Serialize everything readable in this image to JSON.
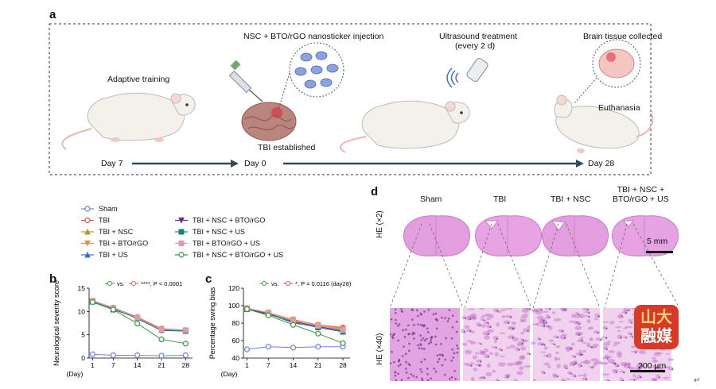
{
  "panel_a": {
    "letter": "a",
    "labels": {
      "adaptive": "Adaptive training",
      "injection": "NSC + BTO/rGO nanosticker injection",
      "ultrasound_1": "Ultrasound treatment",
      "ultrasound_2": "(every 2 d)",
      "brain_tissue": "Brain tissue collected",
      "tbi": "TBI established",
      "euthanasia": "Euthanasia"
    },
    "timeline": [
      "Day 7",
      "Day 0",
      "Day 28"
    ]
  },
  "legend": {
    "items": [
      {
        "label": "Sham",
        "color": "#6f7fe0"
      },
      {
        "label": "TBI",
        "color": "#d9534f"
      },
      {
        "label": "TBI + NSC",
        "color": "#b8962e"
      },
      {
        "label": "TBI + BTO/rGO",
        "color": "#f08a4b"
      },
      {
        "label": "TBI + US",
        "color": "#3f6fbf"
      },
      {
        "label": "TBI + NSC + BTO/rGO",
        "color": "#6a2a8a"
      },
      {
        "label": "TBI + NSC + US",
        "color": "#17837a"
      },
      {
        "label": "TBI + BTO/rGO + US",
        "color": "#e39aa8"
      },
      {
        "label": "TBI + NSC + BTO/rGO + US",
        "color": "#3a9a3a"
      }
    ]
  },
  "chart_data": [
    {
      "id": "b",
      "letter": "b",
      "type": "line",
      "ylabel": "Neurological severity score",
      "x_unit": "(Day)",
      "x": [
        1,
        7,
        14,
        21,
        28
      ],
      "ylim": [
        0,
        15
      ],
      "yticks": [
        0,
        5,
        10,
        15
      ],
      "annotation_vs": "vs.",
      "annotation_stat": "****, P < 0.0001",
      "series": [
        {
          "name": "Sham",
          "color": "#6f7fe0",
          "values": [
            0.8,
            0.6,
            0.6,
            0.5,
            0.6
          ]
        },
        {
          "name": "TBI",
          "color": "#d9534f",
          "values": [
            12.3,
            10.8,
            8.8,
            6.3,
            6.0
          ]
        },
        {
          "name": "TBI + NSC",
          "color": "#b8962e",
          "values": [
            12.2,
            10.5,
            8.7,
            6.2,
            5.9
          ]
        },
        {
          "name": "TBI + BTO/rGO",
          "color": "#f08a4b",
          "values": [
            12.2,
            10.6,
            8.6,
            6.2,
            5.9
          ]
        },
        {
          "name": "TBI + US",
          "color": "#3f6fbf",
          "values": [
            12.1,
            10.4,
            8.7,
            6.1,
            6.0
          ]
        },
        {
          "name": "TBI + NSC + BTO/rGO",
          "color": "#6a2a8a",
          "values": [
            12.2,
            10.6,
            8.5,
            5.9,
            5.8
          ]
        },
        {
          "name": "TBI + NSC + US",
          "color": "#17837a",
          "values": [
            12.1,
            10.5,
            8.6,
            6.0,
            5.8
          ]
        },
        {
          "name": "TBI + BTO/rGO + US",
          "color": "#e39aa8",
          "values": [
            12.3,
            10.7,
            8.7,
            6.1,
            6.0
          ]
        },
        {
          "name": "TBI + NSC + BTO/rGO + US",
          "color": "#3a9a3a",
          "values": [
            12.0,
            10.4,
            7.4,
            4.0,
            3.1
          ]
        }
      ]
    },
    {
      "id": "c",
      "letter": "c",
      "type": "line",
      "ylabel": "Percentage swing bias",
      "x_unit": "(Day)",
      "x": [
        1,
        7,
        14,
        21,
        28
      ],
      "ylim": [
        40,
        120
      ],
      "yticks": [
        40,
        60,
        80,
        100,
        120
      ],
      "annotation_vs": "vs.",
      "annotation_stat": "*, P = 0.0116 (day28)",
      "series": [
        {
          "name": "Sham",
          "color": "#6f7fe0",
          "values": [
            50,
            53,
            52,
            53,
            53
          ]
        },
        {
          "name": "TBI",
          "color": "#d9534f",
          "values": [
            97,
            92,
            84,
            78,
            75
          ]
        },
        {
          "name": "TBI + NSC",
          "color": "#b8962e",
          "values": [
            96,
            91,
            83,
            77,
            73
          ]
        },
        {
          "name": "TBI + BTO/rGO",
          "color": "#f08a4b",
          "values": [
            97,
            92,
            84,
            78,
            74
          ]
        },
        {
          "name": "TBI + US",
          "color": "#3f6fbf",
          "values": [
            96,
            91,
            80,
            76,
            72
          ]
        },
        {
          "name": "TBI + NSC + BTO/rGO",
          "color": "#6a2a8a",
          "values": [
            96,
            90,
            82,
            76,
            71
          ]
        },
        {
          "name": "TBI + NSC + US",
          "color": "#17837a",
          "values": [
            97,
            91,
            81,
            75,
            70
          ]
        },
        {
          "name": "TBI + BTO/rGO + US",
          "color": "#e39aa8",
          "values": [
            97,
            92,
            83,
            77,
            72
          ]
        },
        {
          "name": "TBI + NSC + BTO/rGO + US",
          "color": "#3a9a3a",
          "values": [
            96,
            89,
            78,
            68,
            57
          ]
        }
      ]
    }
  ],
  "panel_d": {
    "letter": "d",
    "columns": [
      "Sham",
      "TBI",
      "TBI + NSC",
      "TBI + NSC +\nBTO/rGO + US"
    ],
    "row_labels": [
      "HE (×2)",
      "HE (×40)"
    ],
    "scale_top": "5 mm",
    "scale_bottom": "200 µm",
    "watermark_line1": "山大",
    "watermark_line2": "融媒"
  },
  "colors": {
    "he_pink": "#d98fd0",
    "he_bg": "#e7b6e3",
    "arrow": "#34495e"
  }
}
